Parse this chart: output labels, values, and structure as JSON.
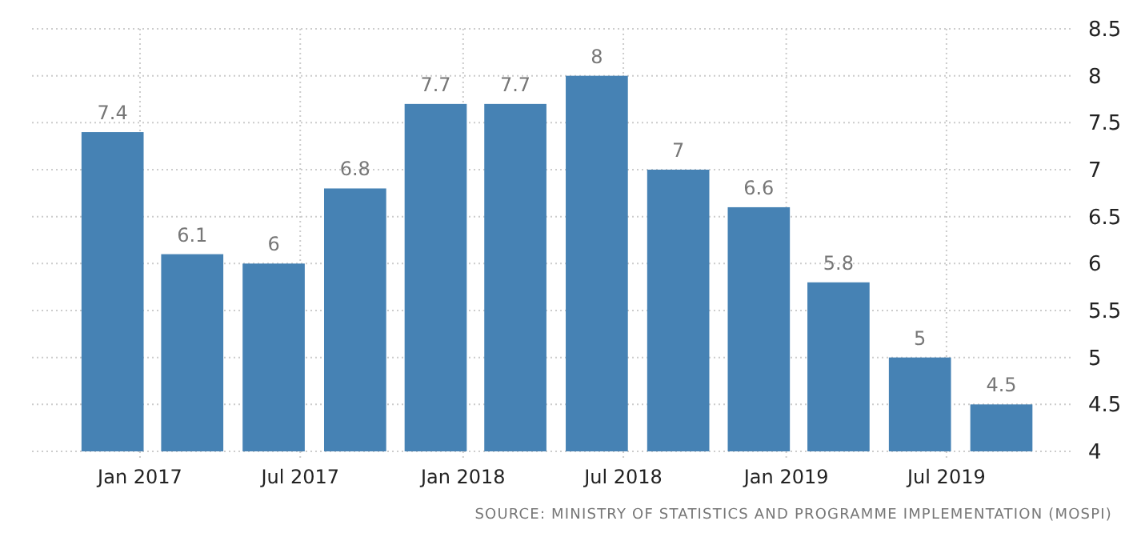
{
  "chart_data": {
    "type": "bar",
    "x": [
      "2016-12-01",
      "2017-03-01",
      "2017-06-01",
      "2017-09-01",
      "2017-12-01",
      "2018-03-01",
      "2018-06-01",
      "2018-09-01",
      "2018-12-01",
      "2019-03-01",
      "2019-06-01",
      "2019-09-01"
    ],
    "values": [
      7.4,
      6.1,
      6,
      6.8,
      7.7,
      7.7,
      8,
      7,
      6.6,
      5.8,
      5,
      4.5
    ],
    "color": "#4682b4",
    "data_labels": true,
    "xlim": [
      "2016-09-01",
      "2019-11-20"
    ],
    "xticks": [
      {
        "value": "2017-01",
        "label": "Jan 2017"
      },
      {
        "value": "2017-07",
        "label": "Jul 2017"
      },
      {
        "value": "2018-01",
        "label": "Jan 2018"
      },
      {
        "value": "2018-07",
        "label": "Jul 2018"
      },
      {
        "value": "2019-01",
        "label": "Jan 2019"
      },
      {
        "value": "2019-07",
        "label": "Jul 2019"
      }
    ],
    "ylim": [
      4,
      8.5
    ],
    "yticks": [
      4,
      4.5,
      5,
      5.5,
      6,
      6.5,
      7,
      7.5,
      8,
      8.5
    ],
    "grid": true,
    "annotations": [
      "SOURCE:  MINISTRY OF STATISTICS AND PROGRAMME IMPLEMENTATION (MOSPI)"
    ]
  }
}
